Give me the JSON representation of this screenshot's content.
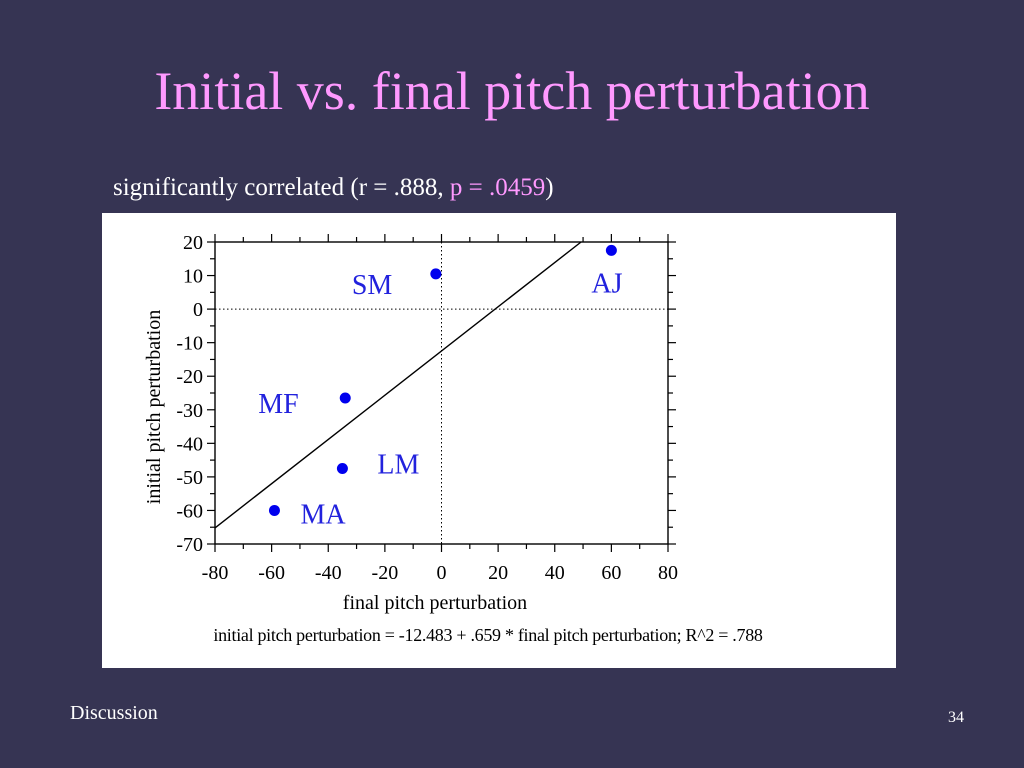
{
  "slide": {
    "title": "Initial vs. final pitch perturbation",
    "subtitle": {
      "prefix": "significantly correlated (r = .888, ",
      "highlight": "p = .0459",
      "suffix": ")"
    },
    "footer_left": "Discussion",
    "page_number": "34"
  },
  "colors": {
    "background": "#363453",
    "title": "#ff99ff",
    "points": "#0000ee",
    "labels": "#2222dd"
  },
  "chart_data": {
    "type": "scatter",
    "xlabel": "final pitch perturbation",
    "ylabel": "initial pitch perturbation",
    "xlim": [
      -80,
      80
    ],
    "ylim": [
      -70,
      20
    ],
    "xticks": [
      -80,
      -60,
      -40,
      -20,
      0,
      20,
      40,
      60,
      80
    ],
    "yticks": [
      20,
      10,
      0,
      -10,
      -20,
      -30,
      -40,
      -50,
      -60,
      -70
    ],
    "points": [
      {
        "label": "SM",
        "x": -2,
        "y": 10.5
      },
      {
        "label": "AJ",
        "x": 60,
        "y": 17.5
      },
      {
        "label": "MF",
        "x": -34,
        "y": -26.5
      },
      {
        "label": "LM",
        "x": -35,
        "y": -47.5
      },
      {
        "label": "MA",
        "x": -59,
        "y": -60
      }
    ],
    "regression": {
      "intercept": -12.483,
      "slope": 0.659
    },
    "reference_lines": {
      "x": 0,
      "y": 0
    },
    "equation": "initial pitch perturbation = -12.483 + .659 * final pitch perturbation; R^2 = .788"
  }
}
